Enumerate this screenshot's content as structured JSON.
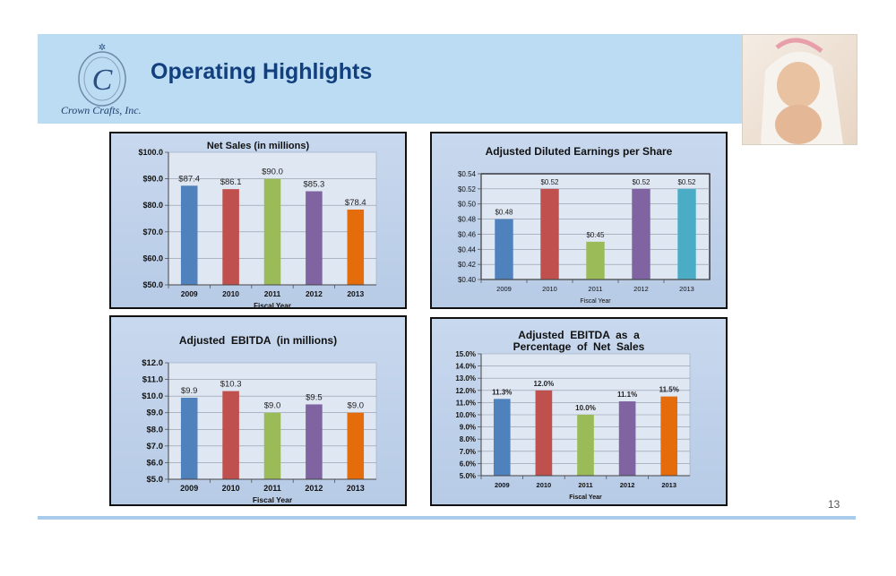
{
  "header": {
    "title": "Operating Highlights",
    "company": "Crown Crafts, Inc.",
    "page_number": "13"
  },
  "colors": {
    "blue": "#4f81bd",
    "red": "#c0504d",
    "green": "#9bbb59",
    "purple": "#8064a2",
    "orange": "#e46c0a",
    "cyan": "#4bacc6"
  },
  "chart_data": [
    {
      "type": "bar",
      "title": "Net Sales (in millions)",
      "xlabel": "Fiscal Year",
      "ylabel": "",
      "categories": [
        "2009",
        "2010",
        "2011",
        "2012",
        "2013"
      ],
      "values": [
        87.4,
        86.1,
        90.0,
        85.3,
        78.4
      ],
      "value_labels": [
        "$87.4",
        "$86.1",
        "$90.0",
        "$85.3",
        "$78.4"
      ],
      "ylim": [
        50,
        100
      ],
      "yticks": [
        "$50.0",
        "$60.0",
        "$70.0",
        "$80.0",
        "$90.0",
        "$100.0"
      ],
      "grid": true,
      "bar_colors": [
        "#4f81bd",
        "#c0504d",
        "#9bbb59",
        "#8064a2",
        "#e46c0a"
      ]
    },
    {
      "type": "bar",
      "title": "Adjusted Diluted Earnings per Share",
      "xlabel": "Fiscal Year",
      "ylabel": "",
      "categories": [
        "2009",
        "2010",
        "2011",
        "2012",
        "2013"
      ],
      "values": [
        0.48,
        0.52,
        0.45,
        0.52,
        0.52
      ],
      "value_labels": [
        "$0.48",
        "$0.52",
        "$0.45",
        "$0.52",
        "$0.52"
      ],
      "ylim": [
        0.4,
        0.54
      ],
      "yticks": [
        "$0.40",
        "$0.42",
        "$0.44",
        "$0.46",
        "$0.48",
        "$0.50",
        "$0.52",
        "$0.54"
      ],
      "grid": true,
      "bar_colors": [
        "#4f81bd",
        "#c0504d",
        "#9bbb59",
        "#8064a2",
        "#4bacc6"
      ]
    },
    {
      "type": "bar",
      "title": "Adjusted  EBITDA  (in millions)",
      "xlabel": "Fiscal Year",
      "ylabel": "",
      "categories": [
        "2009",
        "2010",
        "2011",
        "2012",
        "2013"
      ],
      "values": [
        9.9,
        10.3,
        9.0,
        9.5,
        9.0
      ],
      "value_labels": [
        "$9.9",
        "$10.3",
        "$9.0",
        "$9.5",
        "$9.0"
      ],
      "ylim": [
        5,
        12
      ],
      "yticks": [
        "$5.0",
        "$6.0",
        "$7.0",
        "$8.0",
        "$9.0",
        "$10.0",
        "$11.0",
        "$12.0"
      ],
      "grid": true,
      "bar_colors": [
        "#4f81bd",
        "#c0504d",
        "#9bbb59",
        "#8064a2",
        "#e46c0a"
      ]
    },
    {
      "type": "bar",
      "title": "Adjusted  EBITDA  as  a",
      "title_line2": "Percentage  of  Net  Sales",
      "xlabel": "Fiscal Year",
      "ylabel": "",
      "categories": [
        "2009",
        "2010",
        "2011",
        "2012",
        "2013"
      ],
      "values": [
        11.3,
        12.0,
        10.0,
        11.1,
        11.5
      ],
      "value_labels": [
        "11.3%",
        "12.0%",
        "10.0%",
        "11.1%",
        "11.5%"
      ],
      "ylim": [
        5,
        15
      ],
      "yticks": [
        "5.0%",
        "6.0%",
        "7.0%",
        "8.0%",
        "9.0%",
        "10.0%",
        "11.0%",
        "12.0%",
        "13.0%",
        "14.0%",
        "15.0%"
      ],
      "grid": true,
      "bar_colors": [
        "#4f81bd",
        "#c0504d",
        "#9bbb59",
        "#8064a2",
        "#e46c0a"
      ]
    }
  ]
}
